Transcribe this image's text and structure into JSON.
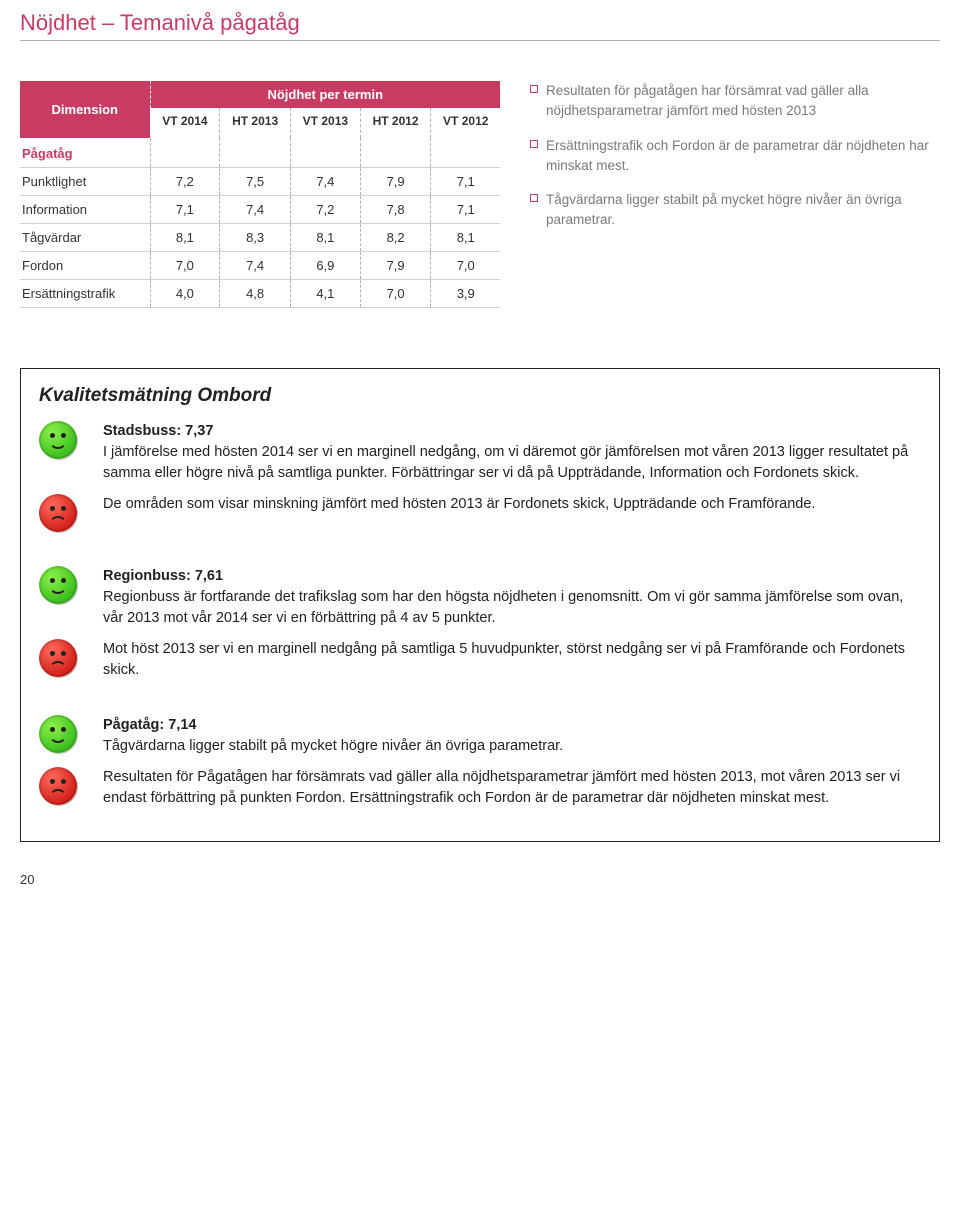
{
  "title": "Nöjdhet – Temanivå pågatåg",
  "table": {
    "dim_header": "Dimension",
    "group_header": "Nöjdhet per termin",
    "columns": [
      "VT 2014",
      "HT 2013",
      "VT 2013",
      "HT 2012",
      "VT 2012"
    ],
    "section_label": "Pågatåg",
    "rows": [
      {
        "label": "Punktlighet",
        "v": [
          "7,2",
          "7,5",
          "7,4",
          "7,9",
          "7,1"
        ]
      },
      {
        "label": "Information",
        "v": [
          "7,1",
          "7,4",
          "7,2",
          "7,8",
          "7,1"
        ]
      },
      {
        "label": "Tågvärdar",
        "v": [
          "8,1",
          "8,3",
          "8,1",
          "8,2",
          "8,1"
        ]
      },
      {
        "label": "Fordon",
        "v": [
          "7,0",
          "7,4",
          "6,9",
          "7,9",
          "7,0"
        ]
      },
      {
        "label": "Ersättningstrafik",
        "v": [
          "4,0",
          "4,8",
          "4,1",
          "7,0",
          "3,9"
        ]
      }
    ]
  },
  "bullets": [
    "Resultaten för pågatågen har försämrat vad gäller alla nöjdhetsparametrar jämfört med hösten 2013",
    "Ersättningstrafik och Fordon är de parametrar där nöjdheten har minskat mest.",
    "Tågvärdarna ligger stabilt på mycket högre nivåer än övriga parametrar."
  ],
  "frame_title": "Kvalitetsmätning Ombord",
  "sections": [
    {
      "lead": "Stadsbuss: 7,37",
      "green": "I jämförelse med hösten 2014 ser vi en marginell nedgång, om vi däremot gör jämförelsen mot våren 2013 ligger resultatet på samma eller högre nivå på samtliga punkter. Förbättringar ser vi då på Uppträdande, Information och Fordonets skick.",
      "red": "De områden som visar minskning jämfört med hösten 2013 är Fordonets skick, Uppträdande och Framförande."
    },
    {
      "lead": "Regionbuss: 7,61",
      "green": "Regionbuss är fortfarande det trafikslag som har den högsta nöjdheten i genomsnitt. Om vi gör samma jämförelse som ovan, vår 2013 mot vår 2014 ser vi en förbättring på 4 av 5 punkter.",
      "red": "Mot höst 2013 ser vi en marginell nedgång på samtliga 5 huvudpunkter, störst nedgång ser vi på Framförande och Fordonets skick."
    },
    {
      "lead": "Pågatåg: 7,14",
      "green": "Tågvärdarna ligger stabilt på mycket högre nivåer än övriga parametrar.",
      "red": "Resultaten för Pågatågen har försämrats vad gäller alla nöjdhetsparametrar jämfört med hösten 2013, mot våren 2013 ser vi endast förbättring på punkten Fordon. Ersättningstrafik och Fordon är de parametrar där nöjdheten minskat mest."
    }
  ],
  "page_number": "20",
  "colors": {
    "accent": "#c83c64",
    "text_muted": "#7a7a7a"
  }
}
